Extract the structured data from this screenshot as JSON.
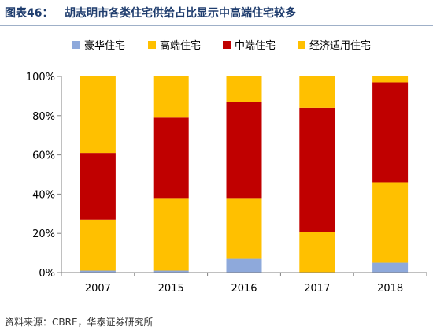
{
  "header": {
    "figure_label": "图表46：",
    "title": "胡志明市各类住宅供给占比显示中高端住宅较多"
  },
  "source": "资料来源：CBRE，华泰证券研究所",
  "chart_data": {
    "type": "bar",
    "stacked": true,
    "percent": true,
    "categories": [
      "2007",
      "2015",
      "2016",
      "2017",
      "2018"
    ],
    "series": [
      {
        "name": "豪华住宅",
        "color": "#8ea9db",
        "values": [
          1,
          1,
          7,
          0,
          5
        ]
      },
      {
        "name": "高端住宅",
        "color": "#ffc000",
        "values": [
          26,
          37,
          31,
          20.5,
          41
        ]
      },
      {
        "name": "中端住宅",
        "color": "#c00000",
        "values": [
          34,
          41,
          49,
          63.5,
          51
        ]
      },
      {
        "name": "经济适用住宅",
        "color": "#ffc000",
        "values": [
          39,
          21,
          13,
          16,
          3
        ]
      }
    ],
    "ylim": [
      0,
      100
    ],
    "yticks": [
      "0%",
      "20%",
      "40%",
      "60%",
      "80%",
      "100%"
    ],
    "legend_position": "top",
    "grid": false
  }
}
